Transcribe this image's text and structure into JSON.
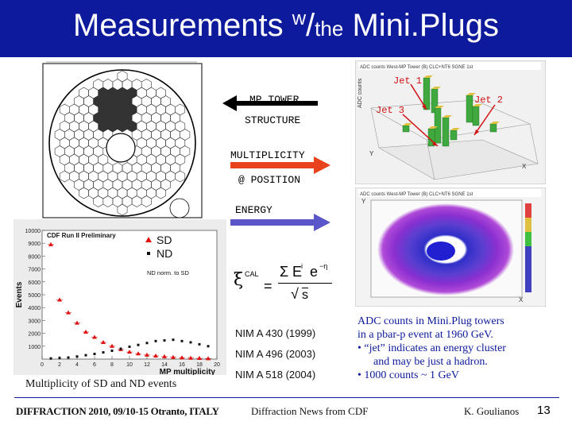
{
  "title": {
    "main": "Measurements ",
    "sup": "w",
    "slash": "/",
    "small": "the",
    "tail": " Mini.Plugs"
  },
  "labels": {
    "mp_tower": "MP TOWER",
    "structure": "STRUCTURE",
    "multiplicity": "MULTIPLICITY",
    "at_position": "@ POSITION",
    "energy": "ENERGY"
  },
  "formula": {
    "xi": "ξ",
    "cal": "CAL",
    "sum": "Σ",
    "e": "E",
    "i": "i",
    "exp": "e",
    "eta": "−η",
    "sqrt_s": "s"
  },
  "references": [
    "NIM A 430 (1999)",
    "NIM A 496 (2003)",
    "NIM A 518 (2004)"
  ],
  "chart_caption": "Multiplicity of SD and ND events",
  "right_text": {
    "line1": "ADC counts in Mini.Plug towers",
    "line2": "in a pbar-p event at 1960 GeV.",
    "bullet1a": "• “jet” indicates an energy cluster",
    "bullet1b": "and may be just a hadron.",
    "bullet2": "• 1000 counts ~ 1 GeV"
  },
  "footer": {
    "left": "DIFFRACTION 2010, 09/10-15 Otranto, ITALY",
    "center": "Diffraction News from CDF",
    "author": "K. Goulianos",
    "page": "13"
  },
  "lego_plot": {
    "header": "ADC counts West-MP Tower (B) CLC+NT6 SGNE 1st",
    "jet1": "Jet 1",
    "jet2": "Jet 2",
    "jet3": "Jet 3",
    "x_axis": "X",
    "y_axis": "Y",
    "z_axis": "ADC counts"
  },
  "color_map": {
    "header": "ADC counts West-MP Tower (B) CLC+NT6 SGNE 1st",
    "x_axis": "X",
    "y_axis": "Y"
  },
  "colors": {
    "title_bg": "#0d1a9c",
    "arrow_red": "#e8431c",
    "arrow_blue": "#5a55c8",
    "jet_red": "#d01010"
  },
  "chart_data": {
    "type": "scatter",
    "title": "CDF Run II Preliminary",
    "xlabel": "MP multiplicity",
    "ylabel": "Events",
    "ylim": [
      0,
      10000
    ],
    "xlim": [
      0,
      20
    ],
    "yticks": [
      "1000",
      "2000",
      "3000",
      "4000",
      "5000",
      "6000",
      "7000",
      "8000",
      "9000",
      "10000"
    ],
    "xticks": [
      "0",
      "2",
      "4",
      "6",
      "8",
      "10",
      "12",
      "14",
      "16",
      "18",
      "20"
    ],
    "legend": [
      "SD",
      "ND"
    ],
    "annotation": "ND norm. to SD",
    "series": [
      {
        "name": "SD",
        "x": [
          1,
          2,
          3,
          4,
          5,
          6,
          7,
          8,
          9,
          10,
          11,
          12,
          13,
          14,
          15,
          16,
          17,
          18,
          19
        ],
        "y": [
          8900,
          4600,
          3600,
          2800,
          2100,
          1700,
          1300,
          1000,
          750,
          550,
          420,
          320,
          250,
          190,
          140,
          110,
          80,
          60,
          40
        ]
      },
      {
        "name": "ND",
        "x": [
          1,
          2,
          3,
          4,
          5,
          6,
          7,
          8,
          9,
          10,
          11,
          12,
          13,
          14,
          15,
          16,
          17,
          18,
          19
        ],
        "y": [
          50,
          80,
          120,
          200,
          300,
          400,
          520,
          650,
          800,
          960,
          1100,
          1250,
          1400,
          1450,
          1500,
          1400,
          1300,
          1150,
          1000
        ]
      }
    ]
  }
}
